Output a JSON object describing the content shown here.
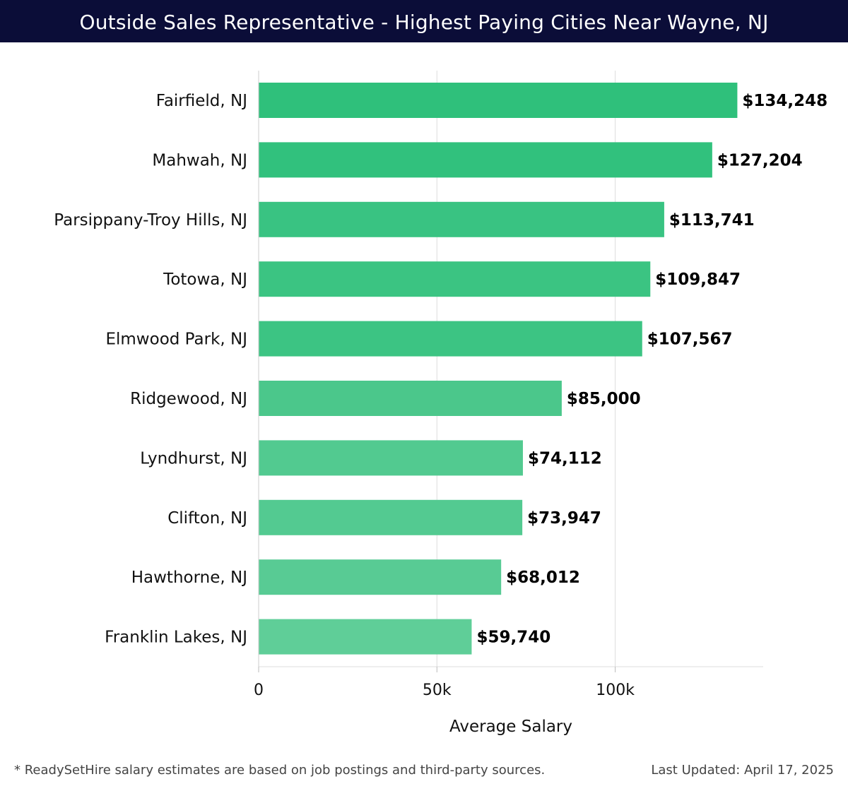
{
  "header": {
    "title": "Outside Sales Representative - Highest Paying Cities Near Wayne, NJ"
  },
  "chart_data": {
    "type": "bar",
    "orientation": "horizontal",
    "title": "Outside Sales Representative - Highest Paying Cities Near Wayne, NJ",
    "categories": [
      "Fairfield, NJ",
      "Mahwah, NJ",
      "Parsippany-Troy Hills, NJ",
      "Totowa, NJ",
      "Elmwood Park, NJ",
      "Ridgewood, NJ",
      "Lyndhurst, NJ",
      "Clifton, NJ",
      "Hawthorne, NJ",
      "Franklin Lakes, NJ"
    ],
    "values": [
      134248,
      127204,
      113741,
      109847,
      107567,
      85000,
      74112,
      73947,
      68012,
      59740
    ],
    "value_labels": [
      "$134,248",
      "$127,204",
      "$113,741",
      "$109,847",
      "$107,567",
      "$85,000",
      "$74,112",
      "$73,947",
      "$68,012",
      "$59,740"
    ],
    "xlabel": "Average Salary",
    "ylabel": "",
    "xlim": [
      0,
      141500
    ],
    "xticks": [
      0,
      50000,
      100000
    ],
    "xtick_labels": [
      "0",
      "50k",
      "100k"
    ],
    "grid": true,
    "colors": [
      "#2bbf78",
      "#2dc07a",
      "#35c27f",
      "#37c380",
      "#38c381",
      "#47c689",
      "#4fc98e",
      "#50c98f",
      "#55ca92",
      "#5ccd96"
    ]
  },
  "footer": {
    "note": "* ReadySetHire salary estimates are based on job postings and third-party sources.",
    "updated": "Last Updated: April 17, 2025"
  }
}
